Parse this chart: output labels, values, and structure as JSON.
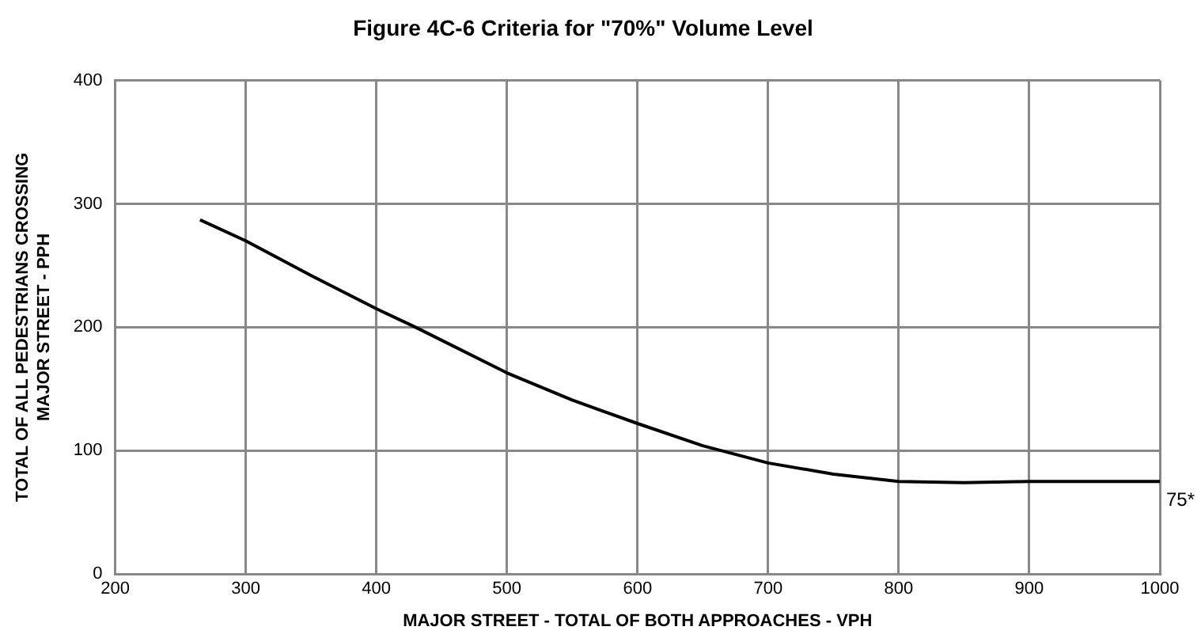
{
  "chart_data": {
    "type": "line",
    "title": "Figure 4C-6 Criteria for \"70%\" Volume Level",
    "xlabel": "MAJOR STREET - TOTAL OF BOTH APPROACHES - VPH",
    "ylabel": "TOTAL OF ALL PEDESTRIANS CROSSING\nMAJOR STREET - PPH",
    "x": [
      265,
      300,
      350,
      400,
      430,
      500,
      550,
      600,
      650,
      700,
      750,
      800,
      850,
      900,
      1000
    ],
    "series": [
      {
        "color": "#000000",
        "values": [
          287,
          270,
          242,
          215,
          200,
          163,
          141,
          122,
          104,
          90,
          81,
          75,
          74,
          75,
          75
        ]
      }
    ],
    "xlim": [
      200,
      1000
    ],
    "xticks": [
      200,
      300,
      400,
      500,
      600,
      700,
      800,
      900,
      1000
    ],
    "ylim": [
      0,
      400
    ],
    "yticks": [
      0,
      100,
      200,
      300,
      400
    ],
    "grid": true,
    "legend": false,
    "marker": "none",
    "line_style": "solid",
    "annotations": [
      {
        "text": "75*",
        "x": 1000,
        "y": 75
      }
    ]
  }
}
